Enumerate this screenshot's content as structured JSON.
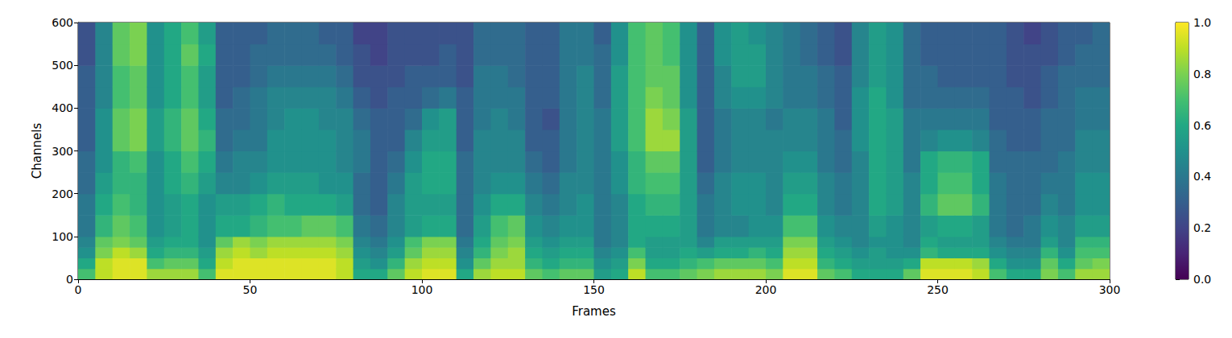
{
  "chart_data": {
    "type": "heatmap",
    "xlabel": "Frames",
    "ylabel": "Channels",
    "xlim": [
      0,
      300
    ],
    "ylim": [
      0,
      600
    ],
    "xticks": [
      0,
      50,
      100,
      150,
      200,
      250,
      300
    ],
    "yticks": [
      0,
      100,
      200,
      300,
      400,
      500,
      600
    ],
    "grid": false,
    "x_edges": [
      0,
      5,
      10,
      15,
      20,
      25,
      30,
      35,
      40,
      45,
      50,
      55,
      60,
      65,
      70,
      75,
      80,
      85,
      90,
      95,
      100,
      105,
      110,
      115,
      120,
      125,
      130,
      135,
      140,
      145,
      150,
      155,
      160,
      165,
      170,
      175,
      180,
      185,
      190,
      195,
      200,
      205,
      210,
      215,
      220,
      225,
      230,
      235,
      240,
      245,
      250,
      255,
      260,
      265,
      270,
      275,
      280,
      285,
      290,
      295,
      300
    ],
    "y_edges": [
      0,
      25,
      50,
      75,
      100,
      150,
      200,
      250,
      300,
      350,
      400,
      450,
      500,
      550,
      600
    ],
    "cells": [
      [
        0.7,
        0.6,
        0.5,
        0.45,
        0.4,
        0.4,
        0.35,
        0.35,
        0.3,
        0.3,
        0.3,
        0.3,
        0.25,
        0.25
      ],
      [
        0.9,
        0.9,
        0.8,
        0.75,
        0.65,
        0.6,
        0.55,
        0.5,
        0.5,
        0.5,
        0.45,
        0.45,
        0.45,
        0.45
      ],
      [
        0.95,
        0.95,
        0.9,
        0.8,
        0.75,
        0.7,
        0.65,
        0.65,
        0.75,
        0.75,
        0.7,
        0.7,
        0.75,
        0.75
      ],
      [
        0.95,
        0.95,
        0.85,
        0.75,
        0.7,
        0.65,
        0.65,
        0.7,
        0.8,
        0.8,
        0.75,
        0.75,
        0.8,
        0.8
      ],
      [
        0.85,
        0.7,
        0.6,
        0.55,
        0.5,
        0.5,
        0.5,
        0.5,
        0.55,
        0.55,
        0.5,
        0.5,
        0.5,
        0.5
      ],
      [
        0.85,
        0.75,
        0.65,
        0.6,
        0.55,
        0.55,
        0.6,
        0.6,
        0.65,
        0.65,
        0.6,
        0.6,
        0.6,
        0.6
      ],
      [
        0.85,
        0.75,
        0.65,
        0.6,
        0.6,
        0.6,
        0.65,
        0.7,
        0.75,
        0.75,
        0.7,
        0.7,
        0.75,
        0.7
      ],
      [
        0.7,
        0.6,
        0.55,
        0.5,
        0.5,
        0.5,
        0.55,
        0.6,
        0.65,
        0.6,
        0.55,
        0.55,
        0.6,
        0.55
      ],
      [
        0.95,
        0.9,
        0.85,
        0.75,
        0.6,
        0.55,
        0.45,
        0.4,
        0.35,
        0.35,
        0.3,
        0.3,
        0.3,
        0.3
      ],
      [
        0.95,
        0.95,
        0.9,
        0.85,
        0.6,
        0.55,
        0.45,
        0.45,
        0.4,
        0.35,
        0.35,
        0.3,
        0.3,
        0.3
      ],
      [
        0.95,
        0.95,
        0.85,
        0.8,
        0.65,
        0.6,
        0.5,
        0.45,
        0.4,
        0.4,
        0.4,
        0.35,
        0.35,
        0.3
      ],
      [
        0.95,
        0.95,
        0.9,
        0.85,
        0.7,
        0.65,
        0.55,
        0.5,
        0.5,
        0.45,
        0.45,
        0.4,
        0.35,
        0.35
      ],
      [
        0.95,
        0.95,
        0.9,
        0.85,
        0.7,
        0.6,
        0.55,
        0.5,
        0.5,
        0.5,
        0.45,
        0.4,
        0.35,
        0.35
      ],
      [
        0.95,
        0.95,
        0.9,
        0.85,
        0.75,
        0.6,
        0.55,
        0.5,
        0.5,
        0.5,
        0.45,
        0.4,
        0.35,
        0.35
      ],
      [
        0.95,
        0.95,
        0.9,
        0.85,
        0.75,
        0.6,
        0.5,
        0.5,
        0.5,
        0.45,
        0.45,
        0.4,
        0.35,
        0.3
      ],
      [
        0.9,
        0.9,
        0.85,
        0.8,
        0.7,
        0.55,
        0.5,
        0.45,
        0.45,
        0.45,
        0.4,
        0.35,
        0.3,
        0.3
      ],
      [
        0.6,
        0.55,
        0.5,
        0.45,
        0.4,
        0.35,
        0.35,
        0.4,
        0.4,
        0.35,
        0.3,
        0.25,
        0.25,
        0.2
      ],
      [
        0.6,
        0.5,
        0.45,
        0.4,
        0.35,
        0.3,
        0.3,
        0.3,
        0.3,
        0.3,
        0.25,
        0.25,
        0.2,
        0.2
      ],
      [
        0.75,
        0.65,
        0.55,
        0.5,
        0.45,
        0.45,
        0.4,
        0.35,
        0.3,
        0.3,
        0.3,
        0.25,
        0.25,
        0.25
      ],
      [
        0.9,
        0.85,
        0.75,
        0.7,
        0.55,
        0.55,
        0.55,
        0.5,
        0.45,
        0.35,
        0.3,
        0.3,
        0.25,
        0.25
      ],
      [
        0.95,
        0.9,
        0.85,
        0.8,
        0.6,
        0.55,
        0.6,
        0.6,
        0.55,
        0.5,
        0.35,
        0.3,
        0.25,
        0.25
      ],
      [
        0.95,
        0.9,
        0.85,
        0.8,
        0.6,
        0.55,
        0.6,
        0.6,
        0.55,
        0.55,
        0.4,
        0.3,
        0.3,
        0.25
      ],
      [
        0.6,
        0.5,
        0.45,
        0.4,
        0.35,
        0.35,
        0.35,
        0.35,
        0.3,
        0.3,
        0.3,
        0.25,
        0.25,
        0.25
      ],
      [
        0.85,
        0.75,
        0.65,
        0.6,
        0.55,
        0.5,
        0.45,
        0.45,
        0.45,
        0.4,
        0.4,
        0.4,
        0.35,
        0.35
      ],
      [
        0.9,
        0.85,
        0.8,
        0.75,
        0.7,
        0.6,
        0.5,
        0.45,
        0.45,
        0.45,
        0.4,
        0.4,
        0.35,
        0.35
      ],
      [
        0.9,
        0.85,
        0.85,
        0.8,
        0.75,
        0.6,
        0.5,
        0.45,
        0.45,
        0.4,
        0.4,
        0.35,
        0.35,
        0.35
      ],
      [
        0.75,
        0.65,
        0.6,
        0.55,
        0.5,
        0.45,
        0.4,
        0.35,
        0.3,
        0.3,
        0.3,
        0.3,
        0.3,
        0.3
      ],
      [
        0.7,
        0.6,
        0.55,
        0.5,
        0.45,
        0.4,
        0.35,
        0.3,
        0.3,
        0.25,
        0.3,
        0.3,
        0.3,
        0.3
      ],
      [
        0.75,
        0.65,
        0.6,
        0.55,
        0.5,
        0.45,
        0.45,
        0.4,
        0.4,
        0.4,
        0.4,
        0.4,
        0.4,
        0.4
      ],
      [
        0.75,
        0.65,
        0.6,
        0.55,
        0.5,
        0.5,
        0.45,
        0.45,
        0.45,
        0.45,
        0.45,
        0.45,
        0.4,
        0.4
      ],
      [
        0.55,
        0.5,
        0.45,
        0.4,
        0.4,
        0.4,
        0.4,
        0.4,
        0.4,
        0.4,
        0.35,
        0.35,
        0.35,
        0.3
      ],
      [
        0.6,
        0.55,
        0.5,
        0.45,
        0.45,
        0.45,
        0.5,
        0.5,
        0.55,
        0.55,
        0.55,
        0.55,
        0.5,
        0.5
      ],
      [
        0.9,
        0.8,
        0.7,
        0.6,
        0.6,
        0.6,
        0.65,
        0.65,
        0.7,
        0.7,
        0.7,
        0.7,
        0.7,
        0.7
      ],
      [
        0.7,
        0.6,
        0.55,
        0.55,
        0.6,
        0.65,
        0.7,
        0.75,
        0.85,
        0.85,
        0.8,
        0.75,
        0.75,
        0.75
      ],
      [
        0.7,
        0.6,
        0.55,
        0.55,
        0.6,
        0.65,
        0.7,
        0.75,
        0.85,
        0.8,
        0.75,
        0.75,
        0.7,
        0.7
      ],
      [
        0.75,
        0.65,
        0.6,
        0.55,
        0.55,
        0.55,
        0.55,
        0.55,
        0.55,
        0.55,
        0.5,
        0.5,
        0.5,
        0.5
      ],
      [
        0.8,
        0.7,
        0.55,
        0.45,
        0.4,
        0.4,
        0.35,
        0.3,
        0.3,
        0.3,
        0.3,
        0.3,
        0.3,
        0.3
      ],
      [
        0.85,
        0.75,
        0.6,
        0.55,
        0.45,
        0.45,
        0.45,
        0.4,
        0.4,
        0.4,
        0.45,
        0.45,
        0.5,
        0.5
      ],
      [
        0.85,
        0.75,
        0.6,
        0.55,
        0.45,
        0.5,
        0.5,
        0.45,
        0.45,
        0.45,
        0.5,
        0.55,
        0.55,
        0.55
      ],
      [
        0.85,
        0.75,
        0.65,
        0.55,
        0.5,
        0.5,
        0.5,
        0.45,
        0.45,
        0.45,
        0.5,
        0.55,
        0.55,
        0.5
      ],
      [
        0.8,
        0.7,
        0.6,
        0.55,
        0.5,
        0.45,
        0.45,
        0.45,
        0.45,
        0.4,
        0.45,
        0.45,
        0.45,
        0.45
      ],
      [
        0.95,
        0.9,
        0.85,
        0.8,
        0.7,
        0.6,
        0.55,
        0.5,
        0.45,
        0.45,
        0.4,
        0.4,
        0.4,
        0.4
      ],
      [
        0.95,
        0.9,
        0.85,
        0.8,
        0.7,
        0.6,
        0.55,
        0.5,
        0.45,
        0.45,
        0.4,
        0.4,
        0.35,
        0.35
      ],
      [
        0.75,
        0.65,
        0.6,
        0.55,
        0.5,
        0.45,
        0.45,
        0.4,
        0.4,
        0.4,
        0.35,
        0.35,
        0.3,
        0.3
      ],
      [
        0.7,
        0.6,
        0.55,
        0.5,
        0.45,
        0.4,
        0.4,
        0.35,
        0.35,
        0.3,
        0.3,
        0.3,
        0.25,
        0.25
      ],
      [
        0.6,
        0.55,
        0.5,
        0.45,
        0.45,
        0.45,
        0.45,
        0.45,
        0.5,
        0.5,
        0.5,
        0.45,
        0.45,
        0.45
      ],
      [
        0.6,
        0.55,
        0.55,
        0.5,
        0.55,
        0.6,
        0.6,
        0.6,
        0.6,
        0.6,
        0.6,
        0.55,
        0.55,
        0.55
      ],
      [
        0.6,
        0.55,
        0.5,
        0.5,
        0.5,
        0.55,
        0.55,
        0.55,
        0.55,
        0.55,
        0.5,
        0.5,
        0.5,
        0.5
      ],
      [
        0.75,
        0.6,
        0.5,
        0.45,
        0.45,
        0.45,
        0.45,
        0.4,
        0.4,
        0.4,
        0.35,
        0.35,
        0.35,
        0.35
      ],
      [
        0.95,
        0.9,
        0.65,
        0.6,
        0.55,
        0.65,
        0.6,
        0.6,
        0.45,
        0.4,
        0.35,
        0.35,
        0.3,
        0.3
      ],
      [
        0.95,
        0.9,
        0.6,
        0.55,
        0.6,
        0.75,
        0.7,
        0.65,
        0.5,
        0.4,
        0.35,
        0.3,
        0.3,
        0.3
      ],
      [
        0.95,
        0.9,
        0.6,
        0.55,
        0.6,
        0.75,
        0.7,
        0.65,
        0.5,
        0.4,
        0.35,
        0.3,
        0.3,
        0.3
      ],
      [
        0.9,
        0.85,
        0.6,
        0.55,
        0.55,
        0.65,
        0.6,
        0.6,
        0.45,
        0.4,
        0.35,
        0.3,
        0.3,
        0.3
      ],
      [
        0.7,
        0.6,
        0.5,
        0.45,
        0.4,
        0.4,
        0.4,
        0.35,
        0.35,
        0.3,
        0.3,
        0.3,
        0.3,
        0.3
      ],
      [
        0.6,
        0.5,
        0.45,
        0.4,
        0.35,
        0.35,
        0.35,
        0.35,
        0.3,
        0.3,
        0.3,
        0.25,
        0.25,
        0.25
      ],
      [
        0.6,
        0.5,
        0.45,
        0.4,
        0.4,
        0.35,
        0.35,
        0.35,
        0.3,
        0.3,
        0.25,
        0.25,
        0.25,
        0.2
      ],
      [
        0.8,
        0.75,
        0.65,
        0.55,
        0.5,
        0.45,
        0.4,
        0.35,
        0.35,
        0.35,
        0.3,
        0.3,
        0.25,
        0.25
      ],
      [
        0.7,
        0.6,
        0.5,
        0.45,
        0.45,
        0.4,
        0.4,
        0.4,
        0.35,
        0.35,
        0.35,
        0.35,
        0.3,
        0.3
      ],
      [
        0.85,
        0.75,
        0.7,
        0.65,
        0.55,
        0.5,
        0.5,
        0.45,
        0.45,
        0.4,
        0.4,
        0.35,
        0.35,
        0.3
      ],
      [
        0.85,
        0.8,
        0.7,
        0.65,
        0.55,
        0.5,
        0.5,
        0.45,
        0.45,
        0.4,
        0.4,
        0.35,
        0.35,
        0.35
      ]
    ],
    "colorbar": {
      "range": [
        0,
        1
      ],
      "ticks": [
        {
          "value": 0,
          "label": "0.0"
        },
        {
          "value": 0.2,
          "label": "0.2"
        },
        {
          "value": 0.4,
          "label": "0.4"
        },
        {
          "value": 0.6,
          "label": "0.6"
        },
        {
          "value": 0.8,
          "label": "0.8"
        },
        {
          "value": 1,
          "label": "1.0"
        }
      ]
    }
  }
}
